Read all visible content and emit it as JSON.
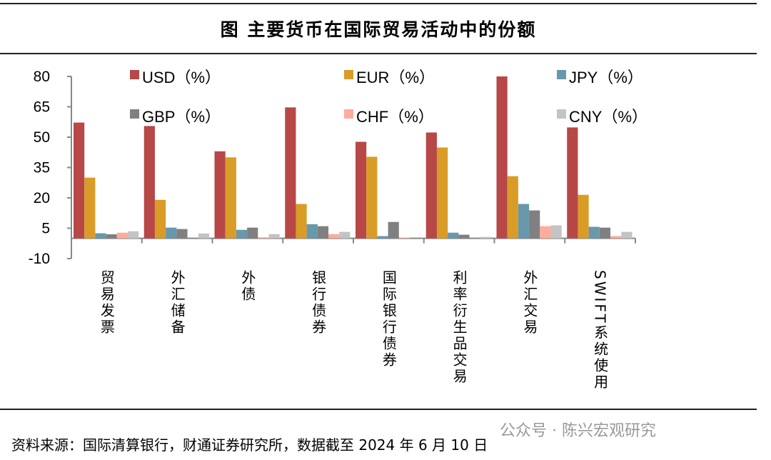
{
  "title": "图  主要货币在国际贸易活动中的份额",
  "source": "资料来源：国际清算银行，财通证券研究所，数据截至 2024 年 6 月 10 日",
  "watermark": "公众号 · 陈兴宏观研究",
  "chart_data": {
    "type": "bar",
    "title": "图  主要货币在国际贸易活动中的份额",
    "categories": [
      "贸易发票",
      "外汇储备",
      "外债",
      "银行债券",
      "国际银行债券",
      "利率衍生品交易",
      "外汇交易",
      "SWIFT系统使用"
    ],
    "ylim": [
      -10,
      80
    ],
    "yticks": [
      80,
      65,
      50,
      35,
      20,
      5,
      -10
    ],
    "grid": false,
    "legend": "top",
    "series": [
      {
        "name": "USD（%）",
        "color": "#b84747",
        "values": [
          57.2,
          55.5,
          43,
          64.7,
          47.7,
          52.3,
          80,
          54.8
        ]
      },
      {
        "name": "EUR（%）",
        "color": "#d99c26",
        "values": [
          30,
          19,
          40,
          17,
          40.3,
          44.9,
          30.7,
          21.5
        ]
      },
      {
        "name": "JPY（%）",
        "color": "#6898ab",
        "values": [
          2.5,
          5.3,
          4.2,
          7,
          1.1,
          2.8,
          17,
          5.7
        ]
      },
      {
        "name": "GBP（%）",
        "color": "#808080",
        "values": [
          2,
          4.6,
          5.3,
          6,
          8.1,
          1.8,
          13.8,
          5.3
        ]
      },
      {
        "name": "CHF（%）",
        "color": "#ffab9e",
        "values": [
          2.8,
          0,
          0.3,
          2.1,
          0.4,
          0,
          6,
          1.1
        ]
      },
      {
        "name": "CNY（%）",
        "color": "#c4c4c4",
        "values": [
          3.5,
          2.4,
          2.1,
          3.2,
          0,
          0.7,
          6.4,
          3.2
        ]
      }
    ]
  }
}
